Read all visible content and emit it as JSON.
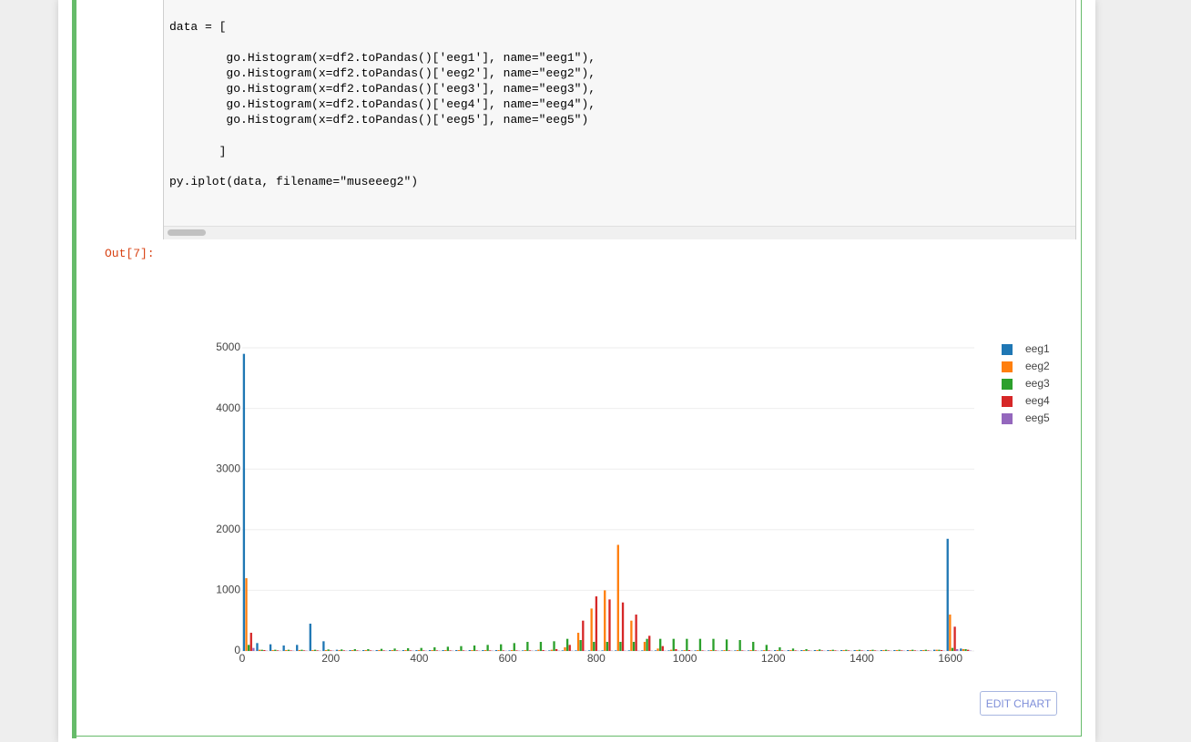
{
  "notebook": {
    "code_lines": [
      "data = [",
      "        go.Histogram(x=df2.toPandas()['eeg1'], name=\"eeg1\"),",
      "        go.Histogram(x=df2.toPandas()['eeg2'], name=\"eeg2\"),",
      "        go.Histogram(x=df2.toPandas()['eeg3'], name=\"eeg3\"),",
      "        go.Histogram(x=df2.toPandas()['eeg4'], name=\"eeg4\"),",
      "        go.Histogram(x=df2.toPandas()['eeg5'], name=\"eeg5\")",
      "       ]",
      "py.iplot(data, filename=\"museeeg2\")"
    ],
    "out_prompt": "Out[7]:",
    "edit_button": "EDIT CHART"
  },
  "chart_data": {
    "type": "histogram",
    "bins": [
      0,
      30,
      60,
      90,
      120,
      150,
      180,
      210,
      240,
      270,
      300,
      330,
      360,
      390,
      420,
      450,
      480,
      510,
      540,
      570,
      600,
      630,
      660,
      690,
      720,
      750,
      780,
      810,
      840,
      870,
      900,
      930,
      960,
      990,
      1020,
      1050,
      1080,
      1110,
      1140,
      1170,
      1200,
      1230,
      1260,
      1290,
      1320,
      1350,
      1380,
      1410,
      1440,
      1470,
      1500,
      1530,
      1560,
      1590,
      1620,
      1650
    ],
    "series": [
      {
        "name": "eeg1",
        "color": "#1f77b4",
        "values": [
          4900,
          130,
          110,
          90,
          100,
          450,
          160,
          20,
          15,
          15,
          15,
          15,
          15,
          15,
          15,
          15,
          15,
          15,
          15,
          15,
          10,
          10,
          10,
          10,
          10,
          10,
          10,
          10,
          10,
          10,
          10,
          10,
          10,
          10,
          10,
          10,
          10,
          10,
          10,
          10,
          15,
          15,
          15,
          15,
          15,
          15,
          15,
          15,
          15,
          15,
          15,
          15,
          20,
          1850,
          40
        ]
      },
      {
        "name": "eeg2",
        "color": "#ff7f0e",
        "values": [
          1200,
          20,
          15,
          15,
          15,
          15,
          15,
          15,
          15,
          15,
          15,
          15,
          15,
          15,
          15,
          15,
          15,
          15,
          15,
          15,
          15,
          15,
          20,
          20,
          60,
          300,
          700,
          1000,
          1750,
          500,
          150,
          40,
          20,
          15,
          15,
          15,
          15,
          15,
          15,
          15,
          15,
          15,
          15,
          15,
          15,
          15,
          15,
          15,
          15,
          15,
          15,
          15,
          20,
          600,
          30
        ]
      },
      {
        "name": "eeg3",
        "color": "#2ca02c",
        "values": [
          100,
          20,
          20,
          20,
          20,
          20,
          25,
          25,
          30,
          30,
          35,
          40,
          45,
          50,
          60,
          70,
          80,
          90,
          100,
          110,
          130,
          150,
          150,
          160,
          200,
          180,
          150,
          150,
          150,
          150,
          200,
          200,
          200,
          200,
          200,
          200,
          190,
          180,
          150,
          100,
          60,
          40,
          30,
          25,
          20,
          20,
          20,
          20,
          20,
          20,
          20,
          20,
          20,
          50,
          30
        ]
      },
      {
        "name": "eeg4",
        "color": "#d62728",
        "values": [
          300,
          15,
          10,
          10,
          10,
          10,
          10,
          10,
          10,
          10,
          10,
          10,
          10,
          10,
          10,
          10,
          10,
          10,
          10,
          10,
          10,
          10,
          15,
          30,
          100,
          500,
          900,
          850,
          800,
          600,
          250,
          80,
          30,
          15,
          10,
          10,
          10,
          10,
          10,
          10,
          10,
          10,
          10,
          10,
          10,
          10,
          10,
          10,
          10,
          10,
          10,
          10,
          15,
          400,
          20
        ]
      },
      {
        "name": "eeg5",
        "color": "#9467bd",
        "values": [
          50,
          5,
          5,
          5,
          5,
          5,
          5,
          5,
          5,
          5,
          5,
          5,
          5,
          5,
          5,
          5,
          5,
          5,
          5,
          5,
          5,
          5,
          5,
          5,
          5,
          5,
          5,
          5,
          5,
          5,
          5,
          5,
          5,
          5,
          5,
          5,
          5,
          5,
          5,
          5,
          5,
          5,
          5,
          5,
          5,
          5,
          5,
          5,
          5,
          5,
          5,
          5,
          5,
          30,
          5
        ]
      }
    ],
    "xlim": [
      0,
      1650
    ],
    "ylim": [
      0,
      5000
    ],
    "xticks": [
      0,
      200,
      400,
      600,
      800,
      1000,
      1200,
      1400,
      1600
    ],
    "yticks": [
      0,
      1000,
      2000,
      3000,
      4000,
      5000
    ],
    "grid": true
  }
}
